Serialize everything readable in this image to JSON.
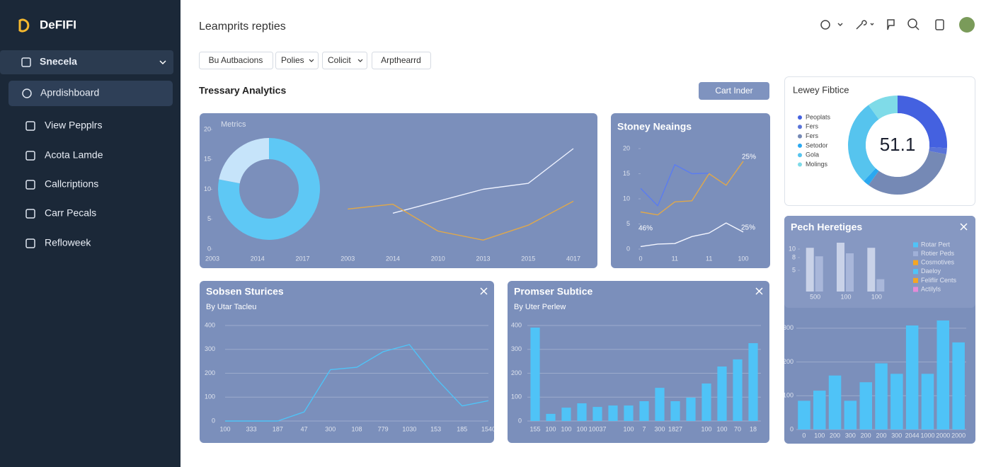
{
  "sidebar": {
    "brand": "DeFIFI",
    "menu_header": "Snecela",
    "items": [
      "Aprdishboard",
      "View Pepplrs",
      "Acota Lamde",
      "Callcriptions",
      "Carr Pecals",
      "Refloweek"
    ]
  },
  "header": {
    "title": "Leamprits repties"
  },
  "filters": [
    "Bu Autbacions",
    "Polies",
    "Colicit",
    "Arpthearrd"
  ],
  "section": {
    "title": "Tressary Analytics",
    "button": "Cart Inder"
  },
  "pech_legend": [
    {
      "name": "Rotar Pert",
      "color": "#4fc3f7"
    },
    {
      "name": "Rotier Peds",
      "color": "#9fb0d8"
    },
    {
      "name": "Cosmotives",
      "color": "#f5a623"
    },
    {
      "name": "Daeloy",
      "color": "#4fc3f7"
    },
    {
      "name": "Feliflir Cents",
      "color": "#f5a623"
    },
    {
      "name": "Actilyls",
      "color": "#e58ad8"
    }
  ],
  "chart_data": [
    {
      "type": "line",
      "title": "Metrics",
      "categories": [
        "2003",
        "2014",
        "2017",
        "2003",
        "2014",
        "2010",
        "2013",
        "2015",
        "4017"
      ],
      "series": [
        {
          "color": "#eef2ff",
          "values": [
            null,
            null,
            null,
            null,
            6,
            8,
            10,
            11,
            16.8
          ]
        },
        {
          "color": "#e0a84a",
          "values": [
            null,
            null,
            null,
            6.7,
            7.5,
            3,
            1.5,
            4,
            8
          ]
        }
      ],
      "ylim": [
        0,
        20
      ],
      "yticks": [
        0,
        5,
        10,
        15,
        20
      ],
      "grid": false
    },
    {
      "type": "pie",
      "values": [
        78,
        22
      ],
      "colors": [
        "#5ec8f5",
        "#c6e4fa"
      ]
    },
    {
      "type": "line",
      "title": "Stoney Neaings",
      "categories": [
        "0",
        null,
        "11",
        null,
        "11",
        null,
        "100"
      ],
      "series": [
        {
          "color": "#5b7cf0",
          "values": [
            12.1,
            8.6,
            16.8,
            15,
            15.1,
            null,
            null
          ]
        },
        {
          "color": "#e0a84a",
          "values": [
            7.4,
            6.8,
            9.4,
            9.6,
            15,
            12.7,
            17.5
          ]
        },
        {
          "color": "#f4f6ff",
          "values": [
            0.5,
            1,
            1.1,
            2.5,
            3.2,
            5.2,
            3.4
          ]
        }
      ],
      "ylim": [
        0,
        20
      ],
      "yticks": [
        0,
        5,
        10,
        15,
        20
      ],
      "grid": false,
      "annotations": [
        "25%",
        "46%",
        "25%"
      ]
    },
    {
      "type": "pie",
      "title": "Lewey Fibtice",
      "categories": [
        "Peoplats",
        "Fers",
        "Fers",
        "Setodor",
        "Gola",
        "Molings"
      ],
      "values": [
        26,
        2,
        32,
        2,
        28,
        10
      ],
      "colors": [
        "#4461e0",
        "#5a74d8",
        "#7589b5",
        "#2aa8f0",
        "#56c4ee",
        "#7fdbe8"
      ],
      "center_label": "51.1"
    },
    {
      "type": "bar",
      "title": "Pech Heretiges",
      "categories": [
        "0",
        "100",
        "200",
        "300",
        "200",
        "200",
        "300",
        "2044",
        "1000",
        "2000",
        "2000"
      ],
      "series": [
        {
          "color": "#4fc3f7",
          "values": [
            85,
            115,
            160,
            85,
            140,
            196,
            165,
            308,
            165,
            323,
            258
          ]
        }
      ],
      "ylim": [
        0,
        350
      ],
      "yticks": [
        0,
        100,
        200,
        300
      ],
      "grid": true
    },
    {
      "type": "bar",
      "categories": [
        "500",
        "100",
        "100"
      ],
      "series": [
        {
          "color": "#c9d2e8",
          "values": [
            10.3,
            11.5,
            10.3
          ]
        },
        {
          "color": "#a9b7da",
          "values": [
            8.3,
            9,
            2.9
          ]
        }
      ],
      "ylim": [
        0,
        12
      ],
      "yticks": [
        5,
        8,
        10
      ],
      "grid": false
    },
    {
      "type": "line",
      "title": "Sobsen Sturices",
      "subtitle": "By Utar Tacleu",
      "categories": [
        "100",
        "333",
        "187",
        "47",
        "300",
        "108",
        "779",
        "1030",
        "153",
        "185",
        "1540"
      ],
      "series": [
        {
          "color": "#4fc3f7",
          "values": [
            0,
            0,
            0,
            38,
            215,
            225,
            290,
            320,
            180,
            63,
            85
          ]
        }
      ],
      "ylim": [
        0,
        400
      ],
      "yticks": [
        0,
        100,
        200,
        300,
        400
      ],
      "grid": true
    },
    {
      "type": "bar",
      "title": "Promser Subtice",
      "subtitle": "By Uter Perlew",
      "categories": [
        "155",
        "100",
        "100",
        "100",
        "10037",
        null,
        "100",
        "7",
        "300",
        "1827",
        null,
        "100",
        "100",
        "70",
        "18"
      ],
      "series": [
        {
          "color": "#4fc3f7",
          "values": [
            391,
            30,
            56,
            74,
            59,
            65,
            65,
            83,
            139,
            83,
            98,
            157,
            228,
            258,
            326
          ]
        }
      ],
      "ylim": [
        0,
        400
      ],
      "yticks": [
        0,
        100,
        200,
        300,
        400
      ],
      "grid": true
    }
  ]
}
